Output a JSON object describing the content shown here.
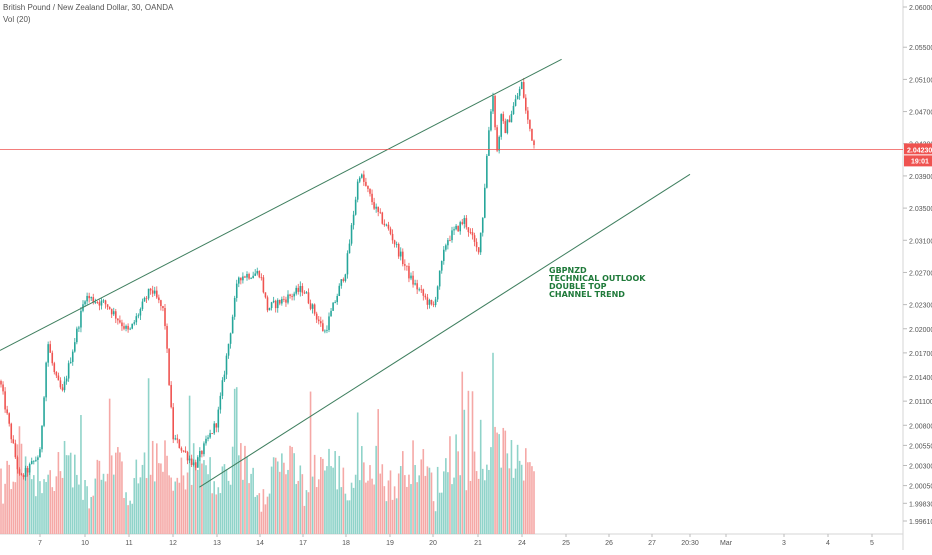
{
  "header": {
    "symbol_line": "British Pound / New Zealand Dollar, 30, OANDA",
    "volume_label": "Vol (20)"
  },
  "annotation": {
    "lines": [
      "GBPNZD",
      "TECHNICAL OUTLOOK",
      "DOUBLE TOP",
      "CHANNEL TREND"
    ]
  },
  "price_axis": {
    "tick_labels": [
      "2.06000",
      "2.05500",
      "2.05100",
      "2.04700",
      "2.04300",
      "2.03900",
      "2.03500",
      "2.03100",
      "2.02700",
      "2.02300",
      "2.02000",
      "2.01700",
      "2.01400",
      "2.01100",
      "2.00800",
      "2.00550",
      "2.00300",
      "2.00050",
      "1.99830",
      "1.99610"
    ],
    "current_price": "2.04230",
    "countdown": "19:01"
  },
  "time_axis": {
    "tick_labels": [
      "7",
      "10",
      "11",
      "12",
      "13",
      "14",
      "17",
      "18",
      "19",
      "20",
      "21",
      "24",
      "25",
      "26",
      "27",
      "20:30",
      "Mar",
      "3",
      "4",
      "5"
    ]
  },
  "colors": {
    "up": "#26a69a",
    "down": "#ef5350",
    "vol_up": "#8fd3c9",
    "vol_down": "#f5a8a6",
    "trendline": "#3f7f5f",
    "price_line": "#ef5350",
    "annotation": "#1f7a3a"
  },
  "chart_data": {
    "type": "candlestick",
    "title": "British Pound / New Zealand Dollar, 30, OANDA",
    "xlabel": "",
    "ylabel": "",
    "ylim": [
      1.9955,
      2.0625
    ],
    "x_categories": [
      "7",
      "10",
      "11",
      "12",
      "13",
      "14",
      "17",
      "18",
      "19",
      "20",
      "21",
      "24",
      "25",
      "26",
      "27",
      "20:30",
      "Mar",
      "3",
      "4",
      "5"
    ],
    "price_path_keypoints": [
      {
        "day": 6.0,
        "price": 2.0135
      },
      {
        "day": 6.5,
        "price": 2.0012
      },
      {
        "day": 7.0,
        "price": 2.0045
      },
      {
        "day": 7.5,
        "price": 2.0185
      },
      {
        "day": 8.0,
        "price": 2.014
      },
      {
        "day": 8.5,
        "price": 2.012
      },
      {
        "day": 10.0,
        "price": 2.024
      },
      {
        "day": 10.5,
        "price": 2.023
      },
      {
        "day": 11.0,
        "price": 2.0195
      },
      {
        "day": 11.5,
        "price": 2.025
      },
      {
        "day": 11.8,
        "price": 2.022
      },
      {
        "day": 12.0,
        "price": 2.0065
      },
      {
        "day": 12.5,
        "price": 2.003
      },
      {
        "day": 13.0,
        "price": 2.0085
      },
      {
        "day": 13.5,
        "price": 2.0265
      },
      {
        "day": 14.0,
        "price": 2.027
      },
      {
        "day": 14.5,
        "price": 2.0225
      },
      {
        "day": 17.0,
        "price": 2.025
      },
      {
        "day": 17.5,
        "price": 2.0195
      },
      {
        "day": 18.0,
        "price": 2.0275
      },
      {
        "day": 18.3,
        "price": 2.0395
      },
      {
        "day": 18.7,
        "price": 2.0345
      },
      {
        "day": 19.0,
        "price": 2.032
      },
      {
        "day": 19.5,
        "price": 2.026
      },
      {
        "day": 20.0,
        "price": 2.0225
      },
      {
        "day": 20.3,
        "price": 2.031
      },
      {
        "day": 20.7,
        "price": 2.0335
      },
      {
        "day": 21.0,
        "price": 2.0295
      },
      {
        "day": 21.3,
        "price": 2.0335
      },
      {
        "day": 21.7,
        "price": 2.044
      },
      {
        "day": 22.0,
        "price": 2.0495
      },
      {
        "day": 22.3,
        "price": 2.042
      },
      {
        "day": 22.6,
        "price": 2.0465
      },
      {
        "day": 22.8,
        "price": 2.0445
      },
      {
        "day": 24.0,
        "price": 2.0505
      },
      {
        "day": 24.1,
        "price": 2.0465
      },
      {
        "day": 24.3,
        "price": 2.0423
      }
    ],
    "trendlines": [
      {
        "name": "upper",
        "from": {
          "day": 5.9,
          "price": 2.0173
        },
        "to": {
          "day": 24.9,
          "price": 2.0535
        }
      },
      {
        "name": "lower",
        "from": {
          "day": 12.6,
          "price": 2.0003
        },
        "to": {
          "day": 28.3,
          "price": 2.0392
        }
      }
    ],
    "last_price": 2.0423,
    "volume": {
      "label": "Vol (20)"
    },
    "grid": false,
    "legend": "top-left"
  }
}
